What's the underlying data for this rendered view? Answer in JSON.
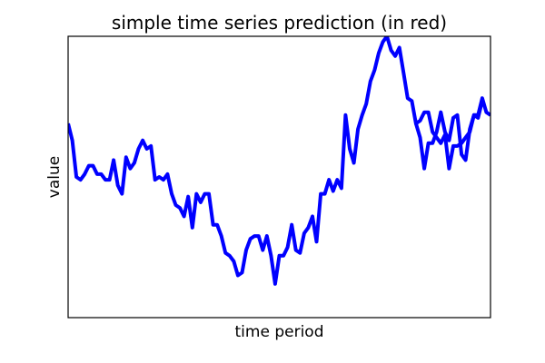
{
  "chart_data": {
    "type": "line",
    "title": "simple time series prediction (in red)",
    "xlabel": "time period",
    "ylabel": "value",
    "xlim": [
      0,
      102
    ],
    "ylim": [
      0,
      1
    ],
    "grid": false,
    "x_ticks_visible": false,
    "y_ticks_visible": false,
    "series": [
      {
        "color": "#0000ff",
        "x": [
          0,
          1,
          2,
          3,
          4,
          5,
          6,
          7,
          8,
          9,
          10,
          11,
          12,
          13,
          14,
          15,
          16,
          17,
          18,
          19,
          20,
          21,
          22,
          23,
          24,
          25,
          26,
          27,
          28,
          29,
          30,
          31,
          32,
          33,
          34,
          35,
          36,
          37,
          38,
          39,
          40,
          41,
          42,
          43,
          44,
          45,
          46,
          47,
          48,
          49,
          50,
          51,
          52,
          53,
          54,
          55,
          56,
          57,
          58,
          59,
          60,
          61,
          62,
          63,
          64,
          65,
          66,
          67,
          68,
          69,
          70,
          71,
          72,
          73,
          74,
          75,
          76,
          77,
          78,
          79,
          80,
          81,
          82,
          83,
          84,
          85,
          86,
          87,
          88,
          89,
          90,
          91,
          92,
          93,
          94,
          95,
          96,
          97,
          98,
          99,
          100
        ],
        "y": [
          0.69,
          0.63,
          0.5,
          0.49,
          0.51,
          0.54,
          0.54,
          0.51,
          0.51,
          0.49,
          0.49,
          0.56,
          0.47,
          0.44,
          0.57,
          0.53,
          0.55,
          0.6,
          0.63,
          0.6,
          0.61,
          0.49,
          0.5,
          0.49,
          0.51,
          0.44,
          0.4,
          0.39,
          0.36,
          0.43,
          0.32,
          0.44,
          0.41,
          0.44,
          0.44,
          0.33,
          0.33,
          0.29,
          0.23,
          0.22,
          0.2,
          0.15,
          0.16,
          0.24,
          0.28,
          0.29,
          0.29,
          0.24,
          0.29,
          0.22,
          0.12,
          0.22,
          0.22,
          0.25,
          0.33,
          0.24,
          0.23,
          0.3,
          0.32,
          0.36,
          0.27,
          0.44,
          0.44,
          0.49,
          0.45,
          0.49,
          0.46,
          0.72,
          0.6,
          0.55,
          0.67,
          0.72,
          0.76,
          0.84,
          0.88,
          0.94,
          0.98,
          1.0,
          0.95,
          0.93,
          0.96,
          0.87,
          0.78,
          0.77,
          0.69,
          0.7,
          0.73,
          0.73,
          0.66,
          0.64,
          0.62,
          0.65,
          0.53,
          0.61,
          0.61,
          0.62,
          0.64,
          0.66,
          0.72,
          0.71,
          0.77
        ]
      },
      {
        "color": "#0000ff",
        "x": [
          84,
          85,
          86,
          87,
          88,
          89,
          90,
          91,
          92,
          93,
          94,
          95,
          96,
          97,
          98,
          99,
          100,
          101,
          102
        ],
        "y": [
          0.69,
          0.64,
          0.53,
          0.62,
          0.62,
          0.66,
          0.73,
          0.66,
          0.63,
          0.71,
          0.72,
          0.58,
          0.56,
          0.67,
          0.72,
          0.72,
          0.78,
          0.73,
          0.72
        ]
      },
      {
        "color": "#0000ff",
        "x": [
          0
        ],
        "y": [
          0
        ]
      }
    ]
  }
}
